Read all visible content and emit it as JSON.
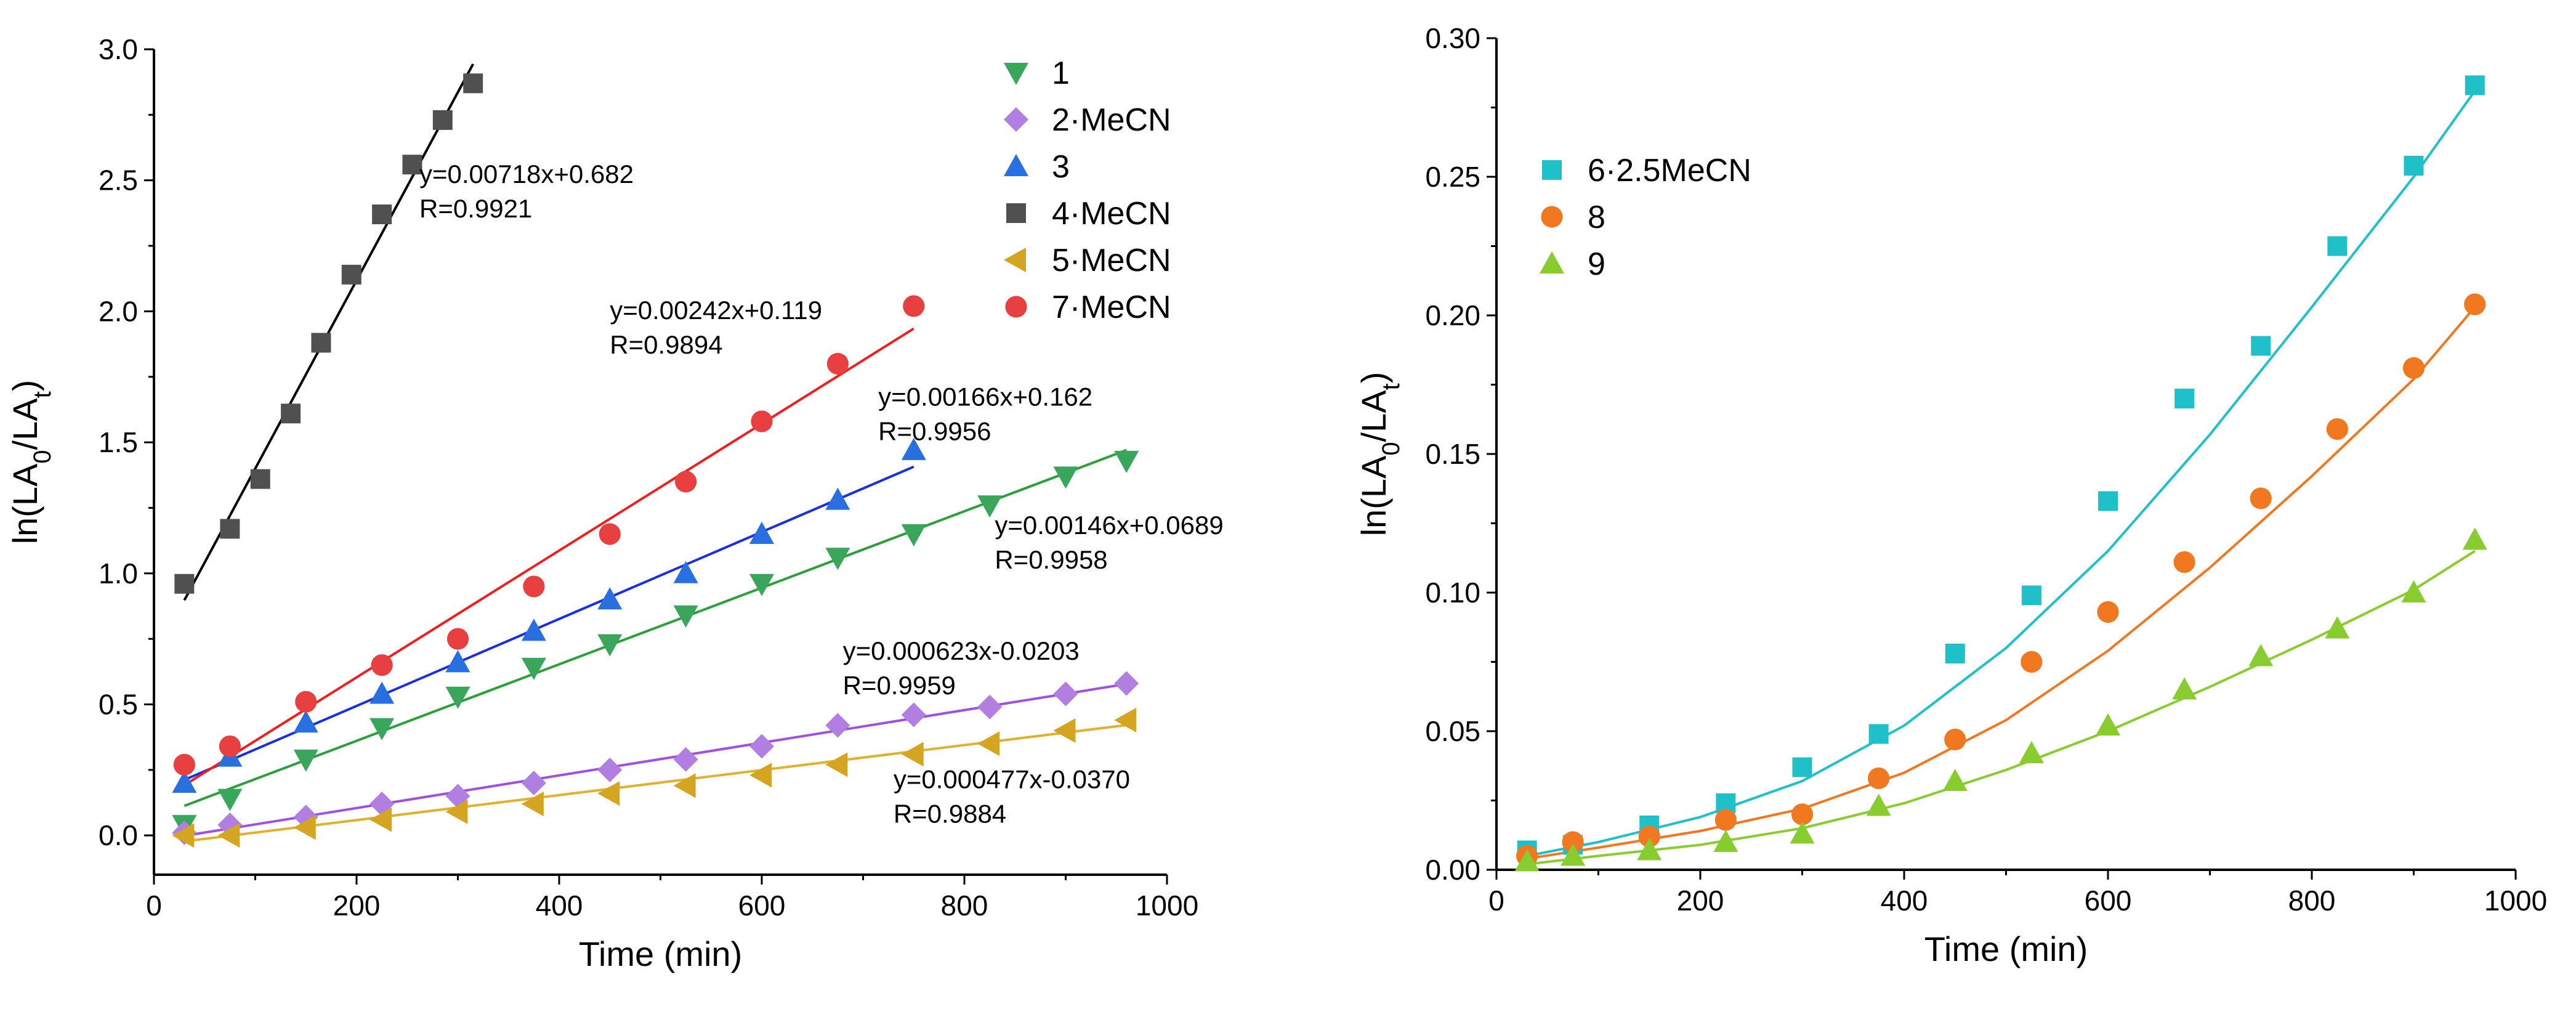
{
  "chart_data": [
    {
      "type": "scatter",
      "xlabel": "Time (min)",
      "ylabel": "ln(LA0/LAt)",
      "ylabel_parts": {
        "prefix": "ln(LA",
        "sub0": "0",
        "mid": "/LA",
        "subt": "t",
        "suffix": ")"
      },
      "xlim": [
        0,
        1000
      ],
      "ylim": [
        -0.15,
        3.0
      ],
      "xticks": [
        0,
        200,
        400,
        600,
        800,
        1000
      ],
      "yticks": [
        0.0,
        0.5,
        1.0,
        1.5,
        2.0,
        2.5,
        3.0
      ],
      "xtick_labels": [
        "0",
        "200",
        "400",
        "600",
        "800",
        "1000"
      ],
      "ytick_labels": [
        "0.0",
        "0.5",
        "1.0",
        "1.5",
        "2.0",
        "2.5",
        "3.0"
      ],
      "legend_position": "top-right",
      "series": [
        {
          "name": "1",
          "marker": "triangle-down",
          "color": "#3aa65c",
          "x": [
            30,
            75,
            150,
            225,
            300,
            375,
            450,
            525,
            600,
            675,
            750,
            825,
            900,
            960
          ],
          "y": [
            0.04,
            0.14,
            0.29,
            0.41,
            0.53,
            0.64,
            0.73,
            0.84,
            0.96,
            1.06,
            1.15,
            1.26,
            1.37,
            1.43
          ],
          "fit": {
            "slope": 0.00146,
            "intercept": 0.0689,
            "x_range": [
              30,
              960
            ]
          }
        },
        {
          "name": "2·MeCN",
          "marker": "diamond",
          "color": "#b07fe0",
          "x": [
            30,
            75,
            150,
            225,
            300,
            375,
            450,
            525,
            600,
            675,
            750,
            825,
            900,
            960
          ],
          "y": [
            0.01,
            0.04,
            0.07,
            0.12,
            0.15,
            0.2,
            0.25,
            0.29,
            0.34,
            0.42,
            0.46,
            0.49,
            0.54,
            0.58
          ],
          "fit": {
            "slope": 0.000623,
            "intercept": -0.0203,
            "x_range": [
              30,
              960
            ]
          }
        },
        {
          "name": "3",
          "marker": "triangle-up",
          "color": "#2a6fe0",
          "x": [
            30,
            75,
            150,
            225,
            300,
            375,
            450,
            525,
            600,
            675,
            750
          ],
          "y": [
            0.2,
            0.3,
            0.43,
            0.54,
            0.66,
            0.78,
            0.9,
            1.0,
            1.15,
            1.28,
            1.47
          ],
          "fit": {
            "slope": 0.00166,
            "intercept": 0.162,
            "x_range": [
              30,
              750
            ]
          }
        },
        {
          "name": "4·MeCN",
          "marker": "square",
          "color": "#505050",
          "x": [
            30,
            75,
            105,
            135,
            165,
            195,
            225,
            255,
            285,
            315
          ],
          "y": [
            0.96,
            1.17,
            1.36,
            1.61,
            1.88,
            2.14,
            2.37,
            2.56,
            2.73,
            2.87
          ],
          "fit": {
            "slope": 0.00718,
            "intercept": 0.682,
            "x_range": [
              30,
              315
            ]
          }
        },
        {
          "name": "5·MeCN",
          "marker": "triangle-left",
          "color": "#d4a520",
          "x": [
            30,
            75,
            150,
            225,
            300,
            375,
            450,
            525,
            600,
            675,
            750,
            825,
            900,
            960
          ],
          "y": [
            0.0,
            0.0,
            0.03,
            0.06,
            0.09,
            0.12,
            0.16,
            0.19,
            0.23,
            0.27,
            0.31,
            0.35,
            0.4,
            0.44
          ],
          "fit": {
            "slope": 0.000477,
            "intercept": -0.037,
            "x_range": [
              30,
              960
            ]
          }
        },
        {
          "name": "7·MeCN",
          "marker": "circle",
          "color": "#e84040",
          "x": [
            30,
            75,
            150,
            225,
            300,
            375,
            450,
            525,
            600,
            675,
            750
          ],
          "y": [
            0.27,
            0.34,
            0.51,
            0.65,
            0.75,
            0.95,
            1.15,
            1.35,
            1.58,
            1.8,
            2.02
          ],
          "fit": {
            "slope": 0.00242,
            "intercept": 0.119,
            "x_range": [
              30,
              750
            ]
          }
        }
      ],
      "annotations": [
        {
          "lines": [
            "y=0.00718x+0.682",
            "R=0.9921"
          ],
          "x": 262,
          "y": 2.49
        },
        {
          "lines": [
            "y=0.00242x+0.119",
            "R=0.9894"
          ],
          "x": 450,
          "y": 1.97
        },
        {
          "lines": [
            "y=0.00166x+0.162",
            "R=0.9956"
          ],
          "x": 715,
          "y": 1.64
        },
        {
          "lines": [
            "y=0.00146x+0.0689",
            "R=0.9958"
          ],
          "x": 830,
          "y": 1.15
        },
        {
          "lines": [
            "y=0.000623x-0.0203",
            "R=0.9959"
          ],
          "x": 680,
          "y": 0.67
        },
        {
          "lines": [
            "y=0.000477x-0.0370",
            "R=0.9884"
          ],
          "x": 730,
          "y": 0.18
        }
      ]
    },
    {
      "type": "scatter",
      "xlabel": "Time (min)",
      "ylabel": "ln(LA0/LAt)",
      "ylabel_parts": {
        "prefix": "ln(LA",
        "sub0": "0",
        "mid": "/LA",
        "subt": "t",
        "suffix": ")"
      },
      "xlim": [
        0,
        1000
      ],
      "ylim": [
        0.0,
        0.3
      ],
      "xticks": [
        0,
        200,
        400,
        600,
        800,
        1000
      ],
      "yticks": [
        0.0,
        0.05,
        0.1,
        0.15,
        0.2,
        0.25,
        0.3
      ],
      "xtick_labels": [
        "0",
        "200",
        "400",
        "600",
        "800",
        "1000"
      ],
      "ytick_labels": [
        "0.00",
        "0.05",
        "0.10",
        "0.15",
        "0.20",
        "0.25",
        "0.30"
      ],
      "legend_position": "top-left",
      "series": [
        {
          "name": "6·2.5MeCN",
          "marker": "square",
          "color": "#20c0c8",
          "x": [
            30,
            75,
            150,
            225,
            300,
            375,
            450,
            525,
            600,
            675,
            750,
            825,
            900,
            960
          ],
          "y": [
            0.007,
            0.009,
            0.016,
            0.024,
            0.037,
            0.049,
            0.078,
            0.099,
            0.133,
            0.17,
            0.189,
            0.225,
            0.254,
            0.283
          ],
          "fit_curve": {
            "x": [
              30,
              100,
              200,
              300,
              400,
              500,
              600,
              700,
              800,
              900,
              960
            ],
            "y": [
              0.005,
              0.01,
              0.019,
              0.032,
              0.052,
              0.08,
              0.115,
              0.157,
              0.203,
              0.25,
              0.281
            ]
          }
        },
        {
          "name": "8",
          "marker": "circle",
          "color": "#f07820",
          "x": [
            30,
            75,
            150,
            225,
            300,
            375,
            450,
            525,
            600,
            675,
            750,
            825,
            900,
            960
          ],
          "y": [
            0.005,
            0.01,
            0.012,
            0.018,
            0.02,
            0.033,
            0.047,
            0.075,
            0.093,
            0.111,
            0.134,
            0.159,
            0.181,
            0.204
          ],
          "fit_curve": {
            "x": [
              30,
              100,
              200,
              300,
              400,
              500,
              600,
              700,
              800,
              900,
              960
            ],
            "y": [
              0.004,
              0.008,
              0.014,
              0.022,
              0.035,
              0.054,
              0.079,
              0.109,
              0.142,
              0.177,
              0.203
            ]
          }
        },
        {
          "name": "9",
          "marker": "triangle-up",
          "color": "#88cc30",
          "x": [
            30,
            75,
            150,
            225,
            300,
            375,
            450,
            525,
            600,
            675,
            750,
            825,
            900,
            960
          ],
          "y": [
            0.003,
            0.005,
            0.007,
            0.01,
            0.013,
            0.023,
            0.032,
            0.042,
            0.052,
            0.065,
            0.077,
            0.087,
            0.1,
            0.119
          ],
          "fit_curve": {
            "x": [
              30,
              100,
              200,
              300,
              400,
              500,
              600,
              700,
              800,
              900,
              960
            ],
            "y": [
              0.002,
              0.005,
              0.009,
              0.015,
              0.024,
              0.036,
              0.05,
              0.066,
              0.083,
              0.101,
              0.115
            ]
          }
        }
      ]
    }
  ]
}
